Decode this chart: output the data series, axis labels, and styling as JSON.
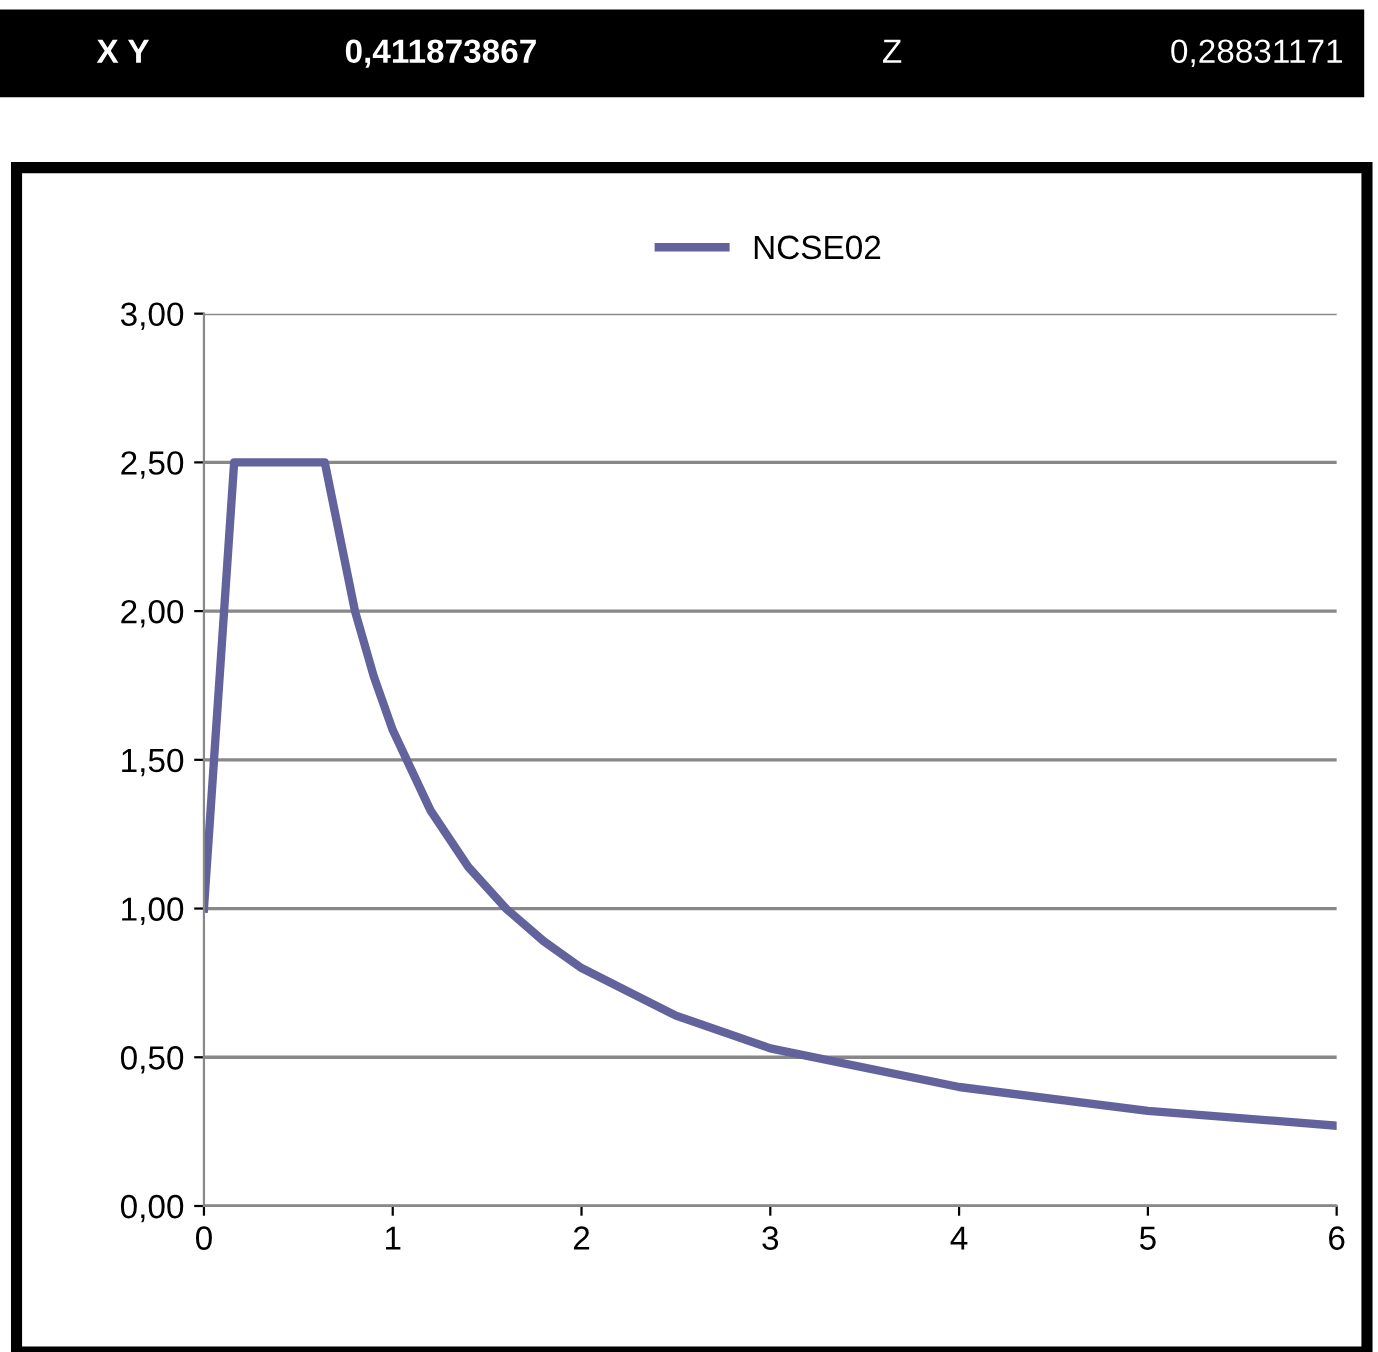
{
  "chart_data": {
    "type": "line",
    "annotations": [
      "X Y",
      "0,411873867",
      "Z",
      "0,28831171"
    ],
    "series": [
      {
        "name": "NCSE02",
        "color": "#62629c",
        "x": [
          0,
          0.16,
          0.64,
          0.8,
          0.9,
          1.0,
          1.2,
          1.4,
          1.6,
          1.8,
          2.0,
          2.5,
          3.0,
          4.0,
          5.0,
          6.0
        ],
        "values": [
          1.0,
          2.5,
          2.5,
          2.0,
          1.78,
          1.6,
          1.33,
          1.14,
          1.0,
          0.89,
          0.8,
          0.64,
          0.53,
          0.4,
          0.32,
          0.27
        ]
      }
    ],
    "xlim": [
      0,
      6
    ],
    "xticks": [
      0,
      1,
      2,
      3,
      4,
      5,
      6
    ],
    "ylim": [
      0,
      3
    ],
    "yticks": [
      {
        "value": 0,
        "label": "0,00"
      },
      {
        "value": 0.5,
        "label": "0,50"
      },
      {
        "value": 1,
        "label": "1,00"
      },
      {
        "value": 1.5,
        "label": "1,50"
      },
      {
        "value": 2,
        "label": "2,00"
      },
      {
        "value": 2.5,
        "label": "2,50"
      },
      {
        "value": 3,
        "label": "3,00"
      }
    ],
    "grid": "y",
    "legend": "top",
    "marker": "none",
    "line_style": "solid"
  }
}
